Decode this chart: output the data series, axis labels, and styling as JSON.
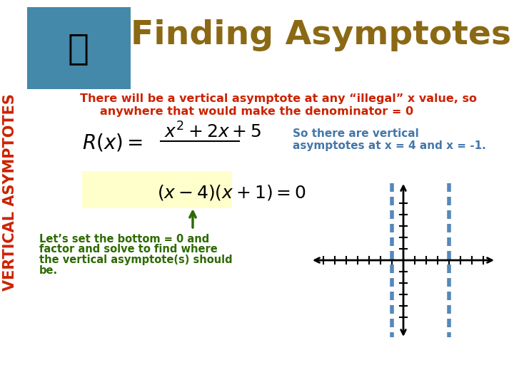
{
  "bg_color": "#ffffff",
  "title": "Finding Asymptotes",
  "title_color": "#8B6914",
  "title_fontsize": 34,
  "vertical_label": "VERTICAL ASYMPTOTES",
  "vertical_label_color": "#cc2200",
  "red_text_line1": "There will be a vertical asymptote at any “illegal” x value, so",
  "red_text_line2": "anywhere that would make the denominator = 0",
  "red_text_color": "#cc2200",
  "green_text_line1": "Let’s set the bottom = 0 and",
  "green_text_line2": "factor and solve to find where",
  "green_text_line3": "the vertical asymptote(s) should",
  "green_text_line4": "be.",
  "green_text_color": "#2d6a00",
  "blue_note_line1": "So there are vertical",
  "blue_note_line2": "asymptotes at x = 4 and x = -1.",
  "blue_note_color": "#4477aa",
  "highlight_color": "#ffffcc",
  "dashed_color": "#5588bb",
  "axis_color": "#000000",
  "fish_color": "#4488aa",
  "arrow_color": "#2d6a00"
}
